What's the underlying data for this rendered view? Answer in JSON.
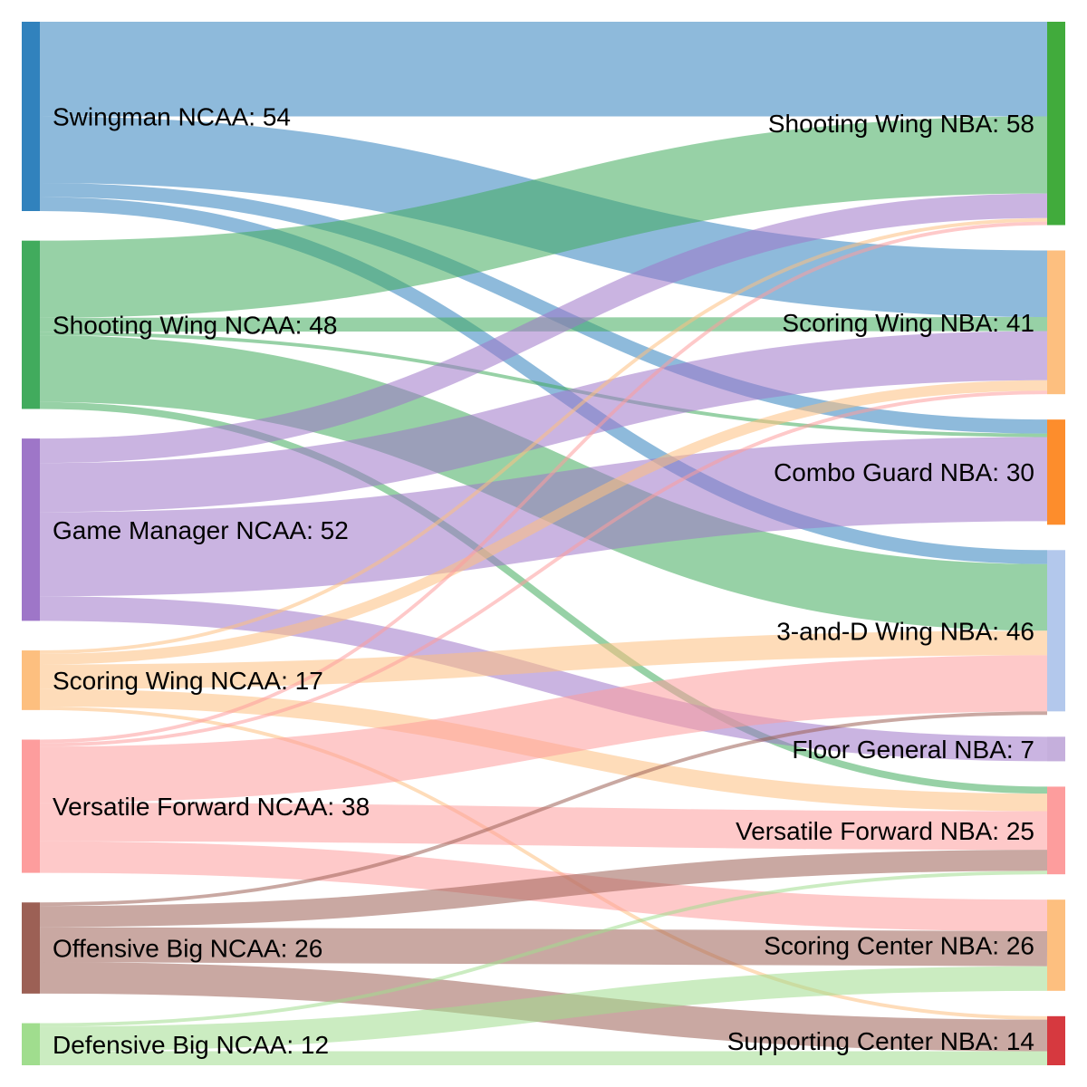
{
  "chart_data": {
    "type": "sankey",
    "title": "",
    "sources": [
      {
        "id": "swingman",
        "label": "Swingman NCAA: 54",
        "value": 54,
        "color": "#3182bd"
      },
      {
        "id": "shooting",
        "label": "Shooting Wing NCAA: 48",
        "value": 48,
        "color": "#41ab5d"
      },
      {
        "id": "gamemgr",
        "label": "Game Manager NCAA: 52",
        "value": 52,
        "color": "#9e76c8"
      },
      {
        "id": "scoring",
        "label": "Scoring Wing NCAA: 17",
        "value": 17,
        "color": "#fdbf7f"
      },
      {
        "id": "versatile",
        "label": "Versatile Forward NCAA: 38",
        "value": 38,
        "color": "#fd9d9d"
      },
      {
        "id": "offbig",
        "label": "Offensive Big NCAA: 26",
        "value": 26,
        "color": "#9c6055"
      },
      {
        "id": "defbig",
        "label": "Defensive Big NCAA: 12",
        "value": 12,
        "color": "#a0dd8e"
      }
    ],
    "targets": [
      {
        "id": "t_shoot",
        "label": "Shooting Wing NBA: 58",
        "value": 58,
        "color": "#41ab3c"
      },
      {
        "id": "t_score",
        "label": "Scoring Wing NBA: 41",
        "value": 41,
        "color": "#fdbf7f"
      },
      {
        "id": "t_combo",
        "label": "Combo Guard NBA: 30",
        "value": 30,
        "color": "#fd8d2c"
      },
      {
        "id": "t_3d",
        "label": "3-and-D Wing NBA: 46",
        "value": 46,
        "color": "#b3c8ec"
      },
      {
        "id": "t_floor",
        "label": "Floor General NBA: 7",
        "value": 7,
        "color": "#c5afdc"
      },
      {
        "id": "t_vers",
        "label": "Versatile Forward NBA: 25",
        "value": 25,
        "color": "#fd9d9d"
      },
      {
        "id": "t_scen",
        "label": "Scoring Center NBA: 26",
        "value": 26,
        "color": "#fdbf7f"
      },
      {
        "id": "t_supc",
        "label": "Supporting Center NBA: 14",
        "value": 14,
        "color": "#d6393f"
      }
    ],
    "links": [
      {
        "source": "swingman",
        "target": "t_shoot",
        "value": 27
      },
      {
        "source": "swingman",
        "target": "t_score",
        "value": 19
      },
      {
        "source": "swingman",
        "target": "t_combo",
        "value": 4
      },
      {
        "source": "swingman",
        "target": "t_3d",
        "value": 4
      },
      {
        "source": "shooting",
        "target": "t_shoot",
        "value": 22
      },
      {
        "source": "shooting",
        "target": "t_score",
        "value": 4
      },
      {
        "source": "shooting",
        "target": "t_combo",
        "value": 1
      },
      {
        "source": "shooting",
        "target": "t_3d",
        "value": 19
      },
      {
        "source": "shooting",
        "target": "t_vers",
        "value": 2
      },
      {
        "source": "gamemgr",
        "target": "t_shoot",
        "value": 7
      },
      {
        "source": "gamemgr",
        "target": "t_score",
        "value": 14
      },
      {
        "source": "gamemgr",
        "target": "t_combo",
        "value": 24
      },
      {
        "source": "gamemgr",
        "target": "t_floor",
        "value": 7
      },
      {
        "source": "scoring",
        "target": "t_shoot",
        "value": 1
      },
      {
        "source": "scoring",
        "target": "t_score",
        "value": 3
      },
      {
        "source": "scoring",
        "target": "t_3d",
        "value": 7
      },
      {
        "source": "scoring",
        "target": "t_vers",
        "value": 5
      },
      {
        "source": "scoring",
        "target": "t_supc",
        "value": 1
      },
      {
        "source": "versatile",
        "target": "t_shoot",
        "value": 1
      },
      {
        "source": "versatile",
        "target": "t_score",
        "value": 1
      },
      {
        "source": "versatile",
        "target": "t_3d",
        "value": 16
      },
      {
        "source": "versatile",
        "target": "t_vers",
        "value": 11
      },
      {
        "source": "versatile",
        "target": "t_scen",
        "value": 9
      },
      {
        "source": "offbig",
        "target": "t_3d",
        "value": 1
      },
      {
        "source": "offbig",
        "target": "t_vers",
        "value": 6
      },
      {
        "source": "offbig",
        "target": "t_scen",
        "value": 10
      },
      {
        "source": "offbig",
        "target": "t_supc",
        "value": 9
      },
      {
        "source": "defbig",
        "target": "t_vers",
        "value": 1
      },
      {
        "source": "defbig",
        "target": "t_scen",
        "value": 7
      },
      {
        "source": "defbig",
        "target": "t_supc",
        "value": 4
      }
    ]
  }
}
